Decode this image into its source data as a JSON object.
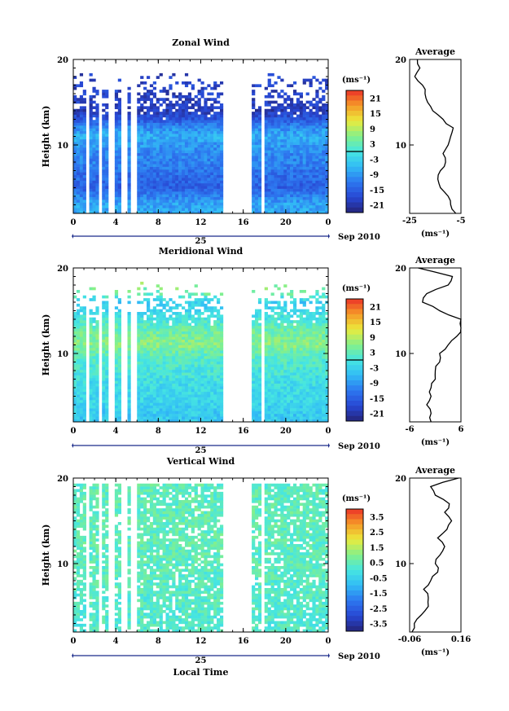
{
  "chart_data": [
    {
      "type": "heatmap",
      "title": "Zonal Wind",
      "ylabel": "Height (km)",
      "x_ticks": [
        "0",
        "4",
        "8",
        "12",
        "16",
        "20",
        "0"
      ],
      "y_ticks": [
        "20",
        "10"
      ],
      "xlim_hours": [
        0,
        24
      ],
      "ylim_km": [
        2,
        20
      ],
      "date_tick": "25",
      "date_label": "Sep 2010",
      "colorbar": {
        "unit": "(ms⁻¹)",
        "labels": [
          "21",
          "15",
          "9",
          "3",
          "-3",
          "-9",
          "-15",
          "-21"
        ],
        "min": -24,
        "max": 24,
        "zero_line": true
      },
      "gaps_hours": [
        [
          1.3,
          1.6
        ],
        [
          2.4,
          2.7
        ],
        [
          3.4,
          3.9
        ],
        [
          4.6,
          5.2
        ],
        [
          5.5,
          5.9
        ],
        [
          14.1,
          16.9
        ],
        [
          17.6,
          18.1
        ]
      ],
      "profile_by_height": [
        [
          3,
          -8
        ],
        [
          4,
          -11
        ],
        [
          5,
          -15
        ],
        [
          6,
          -14
        ],
        [
          7,
          -13
        ],
        [
          8,
          -11
        ],
        [
          9,
          -11
        ],
        [
          10,
          -9
        ],
        [
          11,
          -7
        ],
        [
          12,
          -10
        ],
        [
          13,
          -16
        ],
        [
          14,
          -20
        ],
        [
          15,
          -19
        ]
      ],
      "average": {
        "title": "Average",
        "xlabel": "(ms⁻¹)",
        "x_ticks": [
          "-25",
          "-5"
        ],
        "xlim": [
          -25,
          -5
        ],
        "y_ticks": [
          "20",
          "10"
        ],
        "height_km": [
          2,
          3,
          4,
          5,
          6,
          7,
          8,
          9,
          10,
          11,
          12,
          13,
          14,
          15,
          16,
          17,
          18,
          19,
          20
        ],
        "value": [
          -7,
          -9,
          -10,
          -13,
          -14,
          -13,
          -11,
          -12,
          -10,
          -9,
          -8,
          -12,
          -16,
          -18,
          -19,
          -20,
          -23,
          -21,
          -22
        ]
      }
    },
    {
      "type": "heatmap",
      "title": "Meridional Wind",
      "ylabel": "Height (km)",
      "x_ticks": [
        "0",
        "4",
        "8",
        "12",
        "16",
        "20",
        "0"
      ],
      "y_ticks": [
        "20",
        "10"
      ],
      "xlim_hours": [
        0,
        24
      ],
      "ylim_km": [
        2,
        20
      ],
      "date_tick": "25",
      "date_label": "Sep 2010",
      "colorbar": {
        "unit": "(ms⁻¹)",
        "labels": [
          "21",
          "15",
          "9",
          "3",
          "-3",
          "-9",
          "-15",
          "-21"
        ],
        "min": -24,
        "max": 24,
        "zero_line": true
      },
      "gaps_hours": [
        [
          1.3,
          1.6
        ],
        [
          2.4,
          2.7
        ],
        [
          3.4,
          3.9
        ],
        [
          4.6,
          5.2
        ],
        [
          5.5,
          5.9
        ],
        [
          14.1,
          16.9
        ],
        [
          17.6,
          18.1
        ]
      ],
      "profile_by_height": [
        [
          3,
          -4
        ],
        [
          4,
          -3
        ],
        [
          5,
          -2
        ],
        [
          6,
          -2
        ],
        [
          7,
          -1
        ],
        [
          8,
          0
        ],
        [
          9,
          1
        ],
        [
          10,
          3
        ],
        [
          11,
          6
        ],
        [
          12,
          5
        ],
        [
          13,
          3
        ],
        [
          14,
          0
        ],
        [
          15,
          -2
        ],
        [
          16,
          -4
        ],
        [
          17,
          3
        ],
        [
          18,
          6
        ]
      ],
      "average": {
        "title": "Average",
        "xlabel": "(ms⁻¹)",
        "x_ticks": [
          "-6",
          "6"
        ],
        "xlim": [
          -6,
          6
        ],
        "y_ticks": [
          "20",
          "10"
        ],
        "height_km": [
          2,
          3,
          4,
          5,
          6,
          7,
          8,
          9,
          10,
          11,
          12,
          13,
          14,
          15,
          16,
          17,
          18,
          19,
          20
        ],
        "value": [
          -1,
          -1,
          -2,
          -1,
          -1,
          0,
          0,
          1,
          1,
          3,
          5,
          6,
          6,
          1,
          -3,
          -2,
          3,
          4,
          -4
        ]
      }
    },
    {
      "type": "heatmap",
      "title": "Vertical Wind",
      "ylabel": "Height (km)",
      "xlabel": "Local Time",
      "x_ticks": [
        "0",
        "4",
        "8",
        "12",
        "16",
        "20",
        "0"
      ],
      "y_ticks": [
        "20",
        "10"
      ],
      "xlim_hours": [
        0,
        24
      ],
      "ylim_km": [
        2,
        20
      ],
      "date_tick": "25",
      "date_label": "Sep 2010",
      "colorbar": {
        "unit": "(ms⁻¹)",
        "labels": [
          "3.5",
          "2.5",
          "1.5",
          "0.5",
          "-0.5",
          "-1.5",
          "-2.5",
          "-3.5"
        ],
        "min": -4,
        "max": 4,
        "zero_line": false
      },
      "gaps_hours": [
        [
          1.3,
          1.6
        ],
        [
          2.4,
          2.7
        ],
        [
          3.4,
          3.9
        ],
        [
          4.6,
          5.2
        ],
        [
          5.5,
          5.9
        ],
        [
          14.1,
          16.9
        ],
        [
          17.6,
          18.1
        ]
      ],
      "profile_by_height": [
        [
          3,
          0.2
        ],
        [
          6,
          0.3
        ],
        [
          10,
          0.4
        ],
        [
          15,
          0.5
        ],
        [
          19,
          0.4
        ]
      ],
      "average": {
        "title": "Average",
        "xlabel": "(ms⁻¹)",
        "x_ticks": [
          "-0.06",
          "0.16"
        ],
        "xlim": [
          -0.06,
          0.16
        ],
        "y_ticks": [
          "20",
          "10"
        ],
        "height_km": [
          2,
          3,
          4,
          5,
          6,
          7,
          8,
          9,
          10,
          11,
          12,
          13,
          14,
          15,
          16,
          17,
          18,
          19,
          20
        ],
        "value": [
          -0.05,
          -0.04,
          -0.01,
          0.02,
          0.02,
          0.0,
          0.03,
          0.06,
          0.05,
          0.07,
          0.09,
          0.06,
          0.1,
          0.12,
          0.09,
          0.11,
          0.05,
          0.03,
          0.15
        ]
      }
    }
  ]
}
